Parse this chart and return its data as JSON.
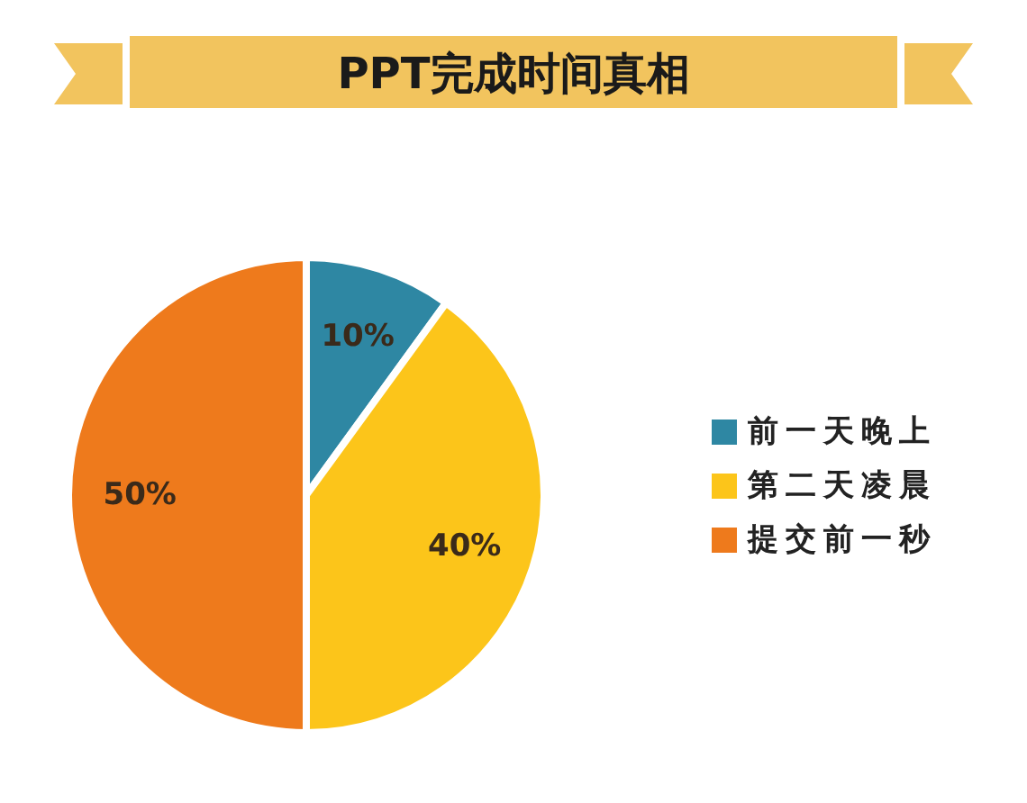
{
  "chart_data": {
    "type": "pie",
    "title": "PPT完成时间真相",
    "categories": [
      "前一天晚上",
      "第二天凌晨",
      "提交前一秒"
    ],
    "values": [
      10,
      40,
      50
    ],
    "colors": [
      "#2e87a3",
      "#fcc51a",
      "#ee7a1c"
    ],
    "value_labels": [
      "10%",
      "40%",
      "50%"
    ],
    "legend": "right"
  }
}
